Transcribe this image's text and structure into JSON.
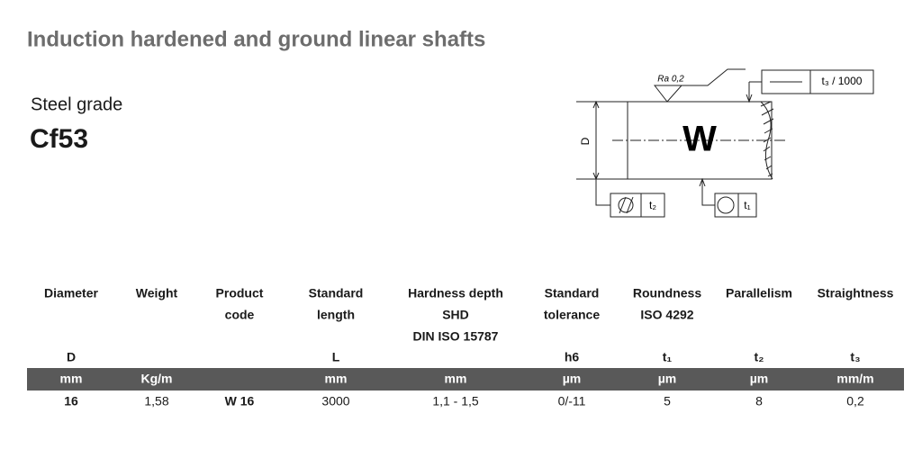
{
  "header": {
    "title": "Induction hardened and ground linear shafts"
  },
  "steel": {
    "label": "Steel grade",
    "value": "Cf53"
  },
  "drawing": {
    "roughness": "Ra 0,2",
    "straightness": "t₃ / 1000",
    "diameter": "D",
    "letter": "W",
    "parallelism": "t₂",
    "roundness": "t₁"
  },
  "table": {
    "columns": [
      {
        "heading": [
          "Diameter"
        ],
        "symbol": "D",
        "unit": "mm"
      },
      {
        "heading": [
          "Weight"
        ],
        "unit": "Kg/m"
      },
      {
        "heading": [
          "Product",
          "code"
        ]
      },
      {
        "heading": [
          "Standard",
          "length"
        ],
        "symbol": "L",
        "unit": "mm"
      },
      {
        "heading": [
          "Hardness depth",
          "SHD",
          "DIN ISO 15787"
        ],
        "unit": "mm"
      },
      {
        "heading": [
          "Standard",
          "tolerance"
        ],
        "symbol": "h6",
        "unit": "µm"
      },
      {
        "heading": [
          "Roundness",
          "ISO 4292"
        ],
        "symbol": "t₁",
        "unit": "µm"
      },
      {
        "heading": [
          "Parallelism"
        ],
        "symbol": "t₂",
        "unit": "µm"
      },
      {
        "heading": [
          "Straightness"
        ],
        "symbol": "t₃",
        "unit": "mm/m"
      }
    ],
    "rows": [
      [
        "16",
        "1,58",
        "W 16",
        "3000",
        "1,1 - 1,5",
        "0/-11",
        "5",
        "8",
        "0,2"
      ]
    ]
  }
}
